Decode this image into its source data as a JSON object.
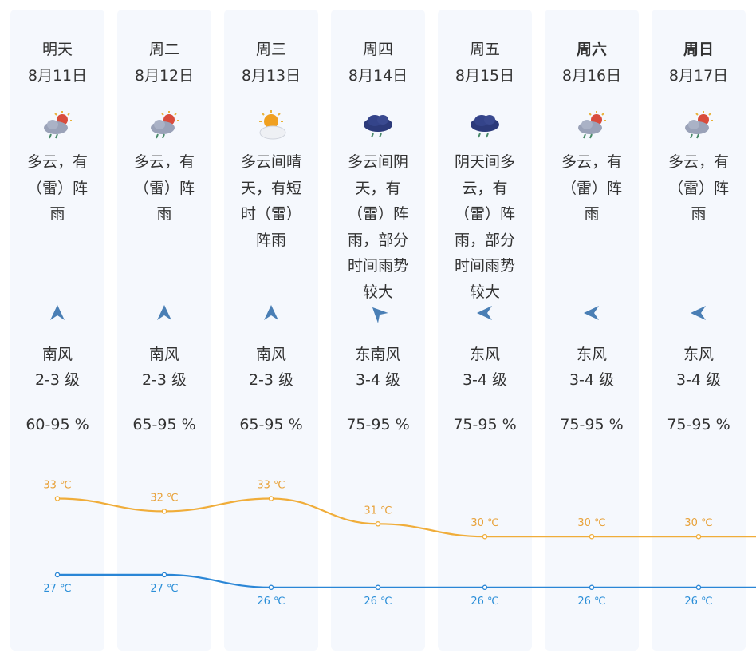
{
  "days": [
    {
      "day": "明天",
      "date": "8月11日",
      "icon": "partly-cloudy-thunder-rain-icon",
      "desc": "多云，有（雷）阵雨",
      "wind_dir": "南风",
      "wind_level": "2-3 级",
      "humidity": "60-95 %",
      "high": "33 ℃",
      "low": "27 ℃"
    },
    {
      "day": "周二",
      "date": "8月12日",
      "icon": "partly-cloudy-thunder-rain-icon",
      "desc": "多云，有（雷）阵雨",
      "wind_dir": "南风",
      "wind_level": "2-3 级",
      "humidity": "65-95 %",
      "high": "32 ℃",
      "low": "27 ℃"
    },
    {
      "day": "周三",
      "date": "8月13日",
      "icon": "sun-behind-cloud-icon",
      "desc": "多云间晴天，有短时（雷）阵雨",
      "wind_dir": "南风",
      "wind_level": "2-3 级",
      "humidity": "65-95 %",
      "high": "33 ℃",
      "low": "26 ℃"
    },
    {
      "day": "周四",
      "date": "8月14日",
      "icon": "dark-cloud-rain-icon",
      "desc": "多云间阴天，有（雷）阵雨，部分时间雨势较大",
      "wind_dir": "东南风",
      "wind_level": "3-4 级",
      "humidity": "75-95 %",
      "high": "31 ℃",
      "low": "26 ℃"
    },
    {
      "day": "周五",
      "date": "8月15日",
      "icon": "dark-cloud-rain-icon",
      "desc": "阴天间多云，有（雷）阵雨，部分时间雨势较大",
      "wind_dir": "东风",
      "wind_level": "3-4 级",
      "humidity": "75-95 %",
      "high": "30 ℃",
      "low": "26 ℃"
    },
    {
      "day": "周六",
      "date": "8月16日",
      "icon": "partly-cloudy-thunder-rain-icon",
      "desc": "多云，有（雷）阵雨",
      "wind_dir": "东风",
      "wind_level": "3-4 级",
      "humidity": "75-95 %",
      "high": "30 ℃",
      "low": "26 ℃"
    },
    {
      "day": "周日",
      "date": "8月17日",
      "icon": "partly-cloudy-thunder-rain-icon",
      "desc": "多云，有（雷）阵雨",
      "wind_dir": "东风",
      "wind_level": "3-4 级",
      "humidity": "75-95 %",
      "high": "30 ℃",
      "low": "26 ℃"
    }
  ],
  "colors": {
    "high_line": "#f0ad3a",
    "low_line": "#2a86d6",
    "column_bg": "#f5f8fd",
    "text": "#333333"
  },
  "chart_data": {
    "type": "line",
    "x": [
      "明天",
      "周二",
      "周三",
      "周四",
      "周五",
      "周六",
      "周日"
    ],
    "series": [
      {
        "values": [
          33,
          32,
          33,
          31,
          30,
          30,
          30
        ]
      },
      {
        "values": [
          27,
          27,
          26,
          26,
          26,
          26,
          26
        ]
      }
    ]
  }
}
